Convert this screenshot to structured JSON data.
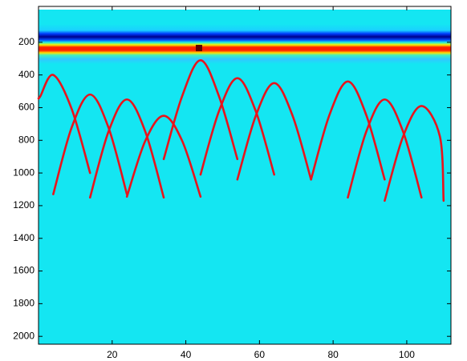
{
  "chart_data": {
    "type": "line",
    "color": "#e8141c",
    "xlim": [
      0,
      112
    ],
    "ylim": [
      0,
      2048
    ],
    "y_reversed": true,
    "xticks": [
      20,
      40,
      60,
      80,
      100
    ],
    "yticks": [
      200,
      400,
      600,
      800,
      1000,
      1200,
      1400,
      1600,
      1800,
      2000
    ],
    "series": [
      {
        "x": [
          0,
          0.5,
          4,
          9,
          14
        ],
        "values": [
          543,
          530,
          400,
          608,
          1000
        ]
      },
      {
        "x": [
          4,
          9,
          14,
          19,
          24
        ],
        "values": [
          1130,
          722,
          520,
          722,
          1130
        ]
      },
      {
        "x": [
          14,
          19,
          24,
          29,
          34
        ],
        "values": [
          1150,
          747,
          550,
          747,
          1150
        ]
      },
      {
        "x": [
          24,
          29,
          34,
          39,
          44
        ],
        "values": [
          1145,
          803,
          650,
          803,
          1145
        ]
      },
      {
        "x": [
          34,
          39,
          44,
          49,
          54
        ],
        "values": [
          915,
          530,
          310,
          530,
          915
        ]
      },
      {
        "x": [
          44,
          49,
          54,
          59,
          64
        ],
        "values": [
          1010,
          622,
          420,
          622,
          1010
        ]
      },
      {
        "x": [
          54,
          59,
          64,
          69,
          74
        ],
        "values": [
          1040,
          650,
          450,
          650,
          1040
        ]
      },
      {
        "x": [
          74,
          79,
          84,
          89,
          94
        ],
        "values": [
          1040,
          645,
          440,
          645,
          1040
        ]
      },
      {
        "x": [
          84,
          89,
          94,
          99,
          104
        ],
        "values": [
          1150,
          747,
          550,
          747,
          1150
        ]
      },
      {
        "x": [
          94,
          99,
          104,
          109,
          110
        ],
        "values": [
          1170,
          777,
          590,
          777,
          1170
        ]
      }
    ]
  }
}
